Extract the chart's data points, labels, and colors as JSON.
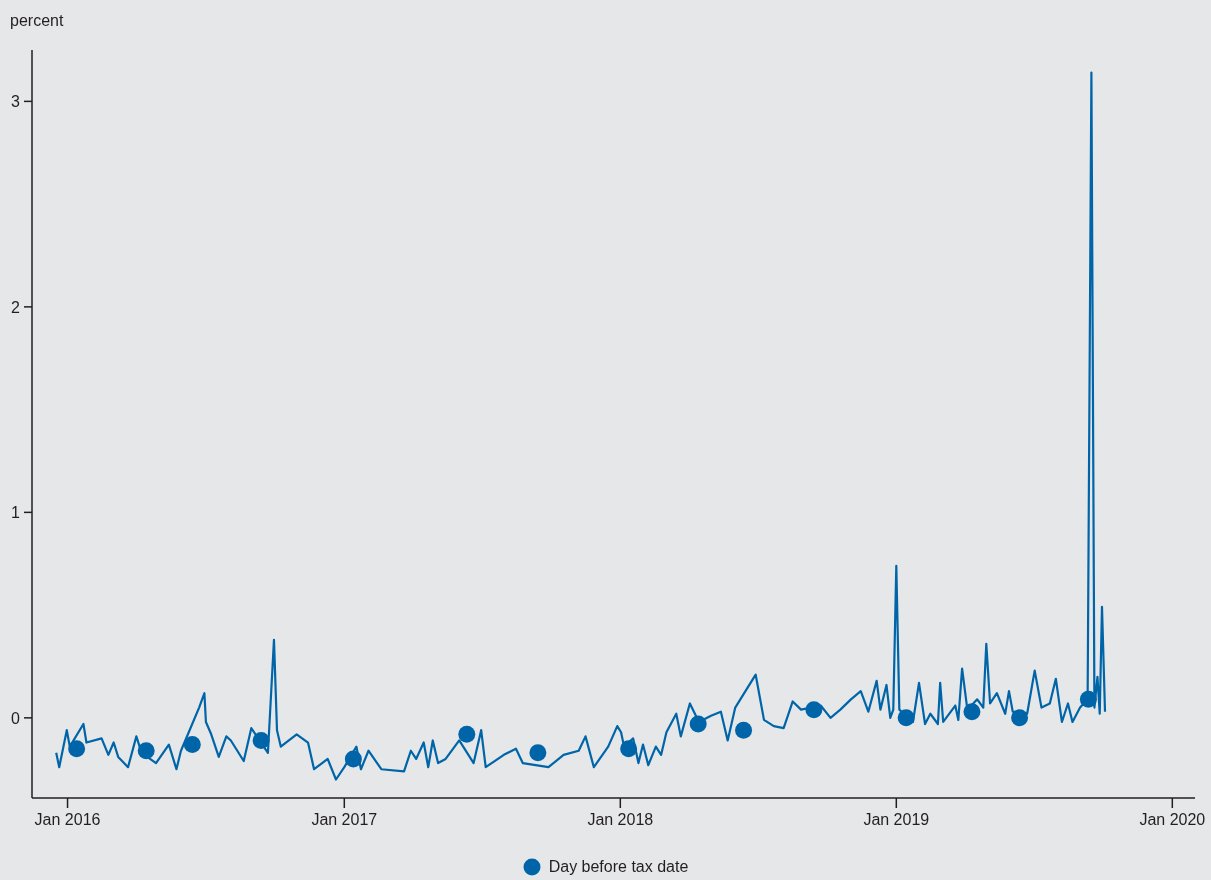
{
  "chart_data": {
    "type": "line",
    "ylabel": "percent",
    "xlim": [
      "2015-11-15",
      "2020-01-31"
    ],
    "ylim": [
      -0.39,
      3.25
    ],
    "yticks": [
      0,
      1,
      2,
      3
    ],
    "xticks": [
      {
        "value": "2016-01-01",
        "label": "Jan 2016"
      },
      {
        "value": "2017-01-01",
        "label": "Jan 2017"
      },
      {
        "value": "2018-01-01",
        "label": "Jan 2018"
      },
      {
        "value": "2019-01-01",
        "label": "Jan 2019"
      },
      {
        "value": "2020-01-01",
        "label": "Jan 2020"
      }
    ],
    "grid": false,
    "legend": "bottom",
    "series": [
      {
        "color": "#0065a8",
        "x": [
          "2015-12-17",
          "2015-12-21",
          "2015-12-31",
          "2016-01-04",
          "2016-01-22",
          "2016-01-26",
          "2016-02-15",
          "2016-02-24",
          "2016-03-02",
          "2016-03-08",
          "2016-03-21",
          "2016-04-01",
          "2016-04-08",
          "2016-04-27",
          "2016-05-14",
          "2016-05-24",
          "2016-05-30",
          "2016-06-23",
          "2016-06-30",
          "2016-07-02",
          "2016-07-09",
          "2016-07-19",
          "2016-07-29",
          "2016-08-04",
          "2016-08-21",
          "2016-08-31",
          "2016-09-22",
          "2016-09-30",
          "2016-10-04",
          "2016-10-09",
          "2016-10-30",
          "2016-11-14",
          "2016-11-22",
          "2016-12-10",
          "2016-12-21",
          "2017-01-01",
          "2017-01-17",
          "2017-01-23",
          "2017-02-02",
          "2017-02-19",
          "2017-03-21",
          "2017-03-30",
          "2017-04-06",
          "2017-04-16",
          "2017-04-22",
          "2017-04-28",
          "2017-05-05",
          "2017-05-15",
          "2017-06-02",
          "2017-06-21",
          "2017-07-01",
          "2017-07-07",
          "2017-07-31",
          "2017-08-16",
          "2017-08-25",
          "2017-09-28",
          "2017-10-18",
          "2017-11-07",
          "2017-11-16",
          "2017-11-27",
          "2017-12-16",
          "2017-12-28",
          "2018-01-02",
          "2018-01-06",
          "2018-01-18",
          "2018-01-25",
          "2018-01-31",
          "2018-02-07",
          "2018-02-17",
          "2018-02-24",
          "2018-03-03",
          "2018-03-16",
          "2018-03-22",
          "2018-04-03",
          "2018-04-15",
          "2018-05-01",
          "2018-05-14",
          "2018-05-23",
          "2018-06-02",
          "2018-06-29",
          "2018-07-10",
          "2018-07-23",
          "2018-08-05",
          "2018-08-17",
          "2018-08-28",
          "2018-09-23",
          "2018-10-06",
          "2018-10-19",
          "2018-11-02",
          "2018-11-15",
          "2018-11-25",
          "2018-12-06",
          "2018-12-11",
          "2018-12-19",
          "2018-12-24",
          "2018-12-28",
          "2019-01-01",
          "2019-01-05",
          "2019-01-23",
          "2019-01-31",
          "2019-02-08",
          "2019-02-15",
          "2019-02-25",
          "2019-02-28",
          "2019-03-04",
          "2019-03-20",
          "2019-03-24",
          "2019-03-29",
          "2019-04-05",
          "2019-04-18",
          "2019-04-26",
          "2019-04-30",
          "2019-05-05",
          "2019-05-14",
          "2019-05-25",
          "2019-05-30",
          "2019-06-04",
          "2019-06-23",
          "2019-07-03",
          "2019-07-12",
          "2019-07-23",
          "2019-07-31",
          "2019-08-08",
          "2019-08-16",
          "2019-08-22",
          "2019-09-01",
          "2019-09-11",
          "2019-09-16",
          "2019-09-20",
          "2019-09-24",
          "2019-09-27",
          "2019-09-30",
          "2019-10-04"
        ],
        "values": [
          -0.17,
          -0.24,
          -0.06,
          -0.14,
          -0.03,
          -0.12,
          -0.1,
          -0.18,
          -0.12,
          -0.19,
          -0.24,
          -0.09,
          -0.17,
          -0.22,
          -0.13,
          -0.25,
          -0.16,
          0.05,
          0.12,
          -0.02,
          -0.08,
          -0.19,
          -0.09,
          -0.11,
          -0.21,
          -0.05,
          -0.17,
          0.38,
          -0.06,
          -0.14,
          -0.08,
          -0.12,
          -0.25,
          -0.2,
          -0.3,
          -0.24,
          -0.14,
          -0.25,
          -0.16,
          -0.25,
          -0.26,
          -0.16,
          -0.2,
          -0.12,
          -0.24,
          -0.11,
          -0.22,
          -0.2,
          -0.11,
          -0.22,
          -0.06,
          -0.24,
          -0.18,
          -0.15,
          -0.22,
          -0.24,
          -0.18,
          -0.16,
          -0.09,
          -0.24,
          -0.14,
          -0.04,
          -0.07,
          -0.14,
          -0.1,
          -0.22,
          -0.13,
          -0.23,
          -0.14,
          -0.18,
          -0.07,
          0.02,
          -0.09,
          0.07,
          -0.02,
          0.01,
          0.03,
          -0.11,
          0.05,
          0.21,
          -0.01,
          -0.04,
          -0.05,
          0.08,
          0.04,
          0.06,
          0.0,
          0.04,
          0.09,
          0.13,
          0.03,
          0.18,
          0.04,
          0.16,
          0.0,
          0.04,
          0.74,
          0.04,
          -0.02,
          0.17,
          -0.03,
          0.02,
          -0.03,
          0.17,
          -0.02,
          0.06,
          -0.01,
          0.24,
          0.04,
          0.09,
          0.05,
          0.36,
          0.07,
          0.12,
          0.02,
          0.13,
          0.03,
          0.02,
          0.23,
          0.05,
          0.07,
          0.19,
          -0.02,
          0.07,
          -0.02,
          0.05,
          0.09,
          3.14,
          0.05,
          0.2,
          0.02,
          0.54,
          0.03
        ]
      },
      {
        "type": "scatter",
        "name": "Day before tax date",
        "color": "#0065a8",
        "marker": "circle",
        "x": [
          "2016-01-13",
          "2016-04-14",
          "2016-06-14",
          "2016-09-13",
          "2017-01-13",
          "2017-06-12",
          "2017-09-14",
          "2018-01-12",
          "2018-04-14",
          "2018-06-13",
          "2018-09-14",
          "2019-01-14",
          "2019-04-11",
          "2019-06-13",
          "2019-09-12"
        ],
        "values": [
          -0.15,
          -0.16,
          -0.13,
          -0.11,
          -0.2,
          -0.08,
          -0.17,
          -0.15,
          -0.03,
          -0.06,
          0.04,
          0.0,
          0.03,
          0.0,
          0.09
        ]
      }
    ]
  }
}
